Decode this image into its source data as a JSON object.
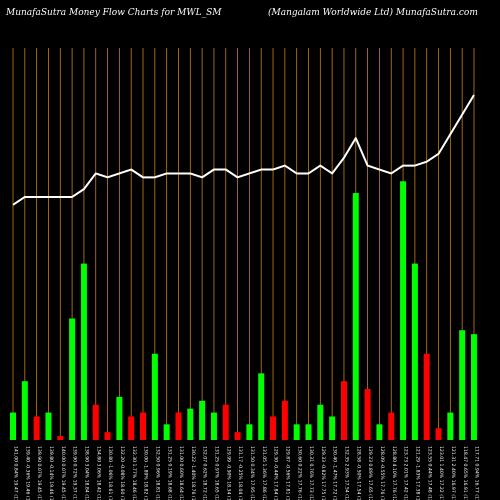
{
  "header": {
    "left": "MunafaSutra  Money Flow  Charts for  MWL_SM",
    "right": "(Mangalam Worldwide   Ltd) MunafaSutra.com"
  },
  "colors": {
    "background": "#000000",
    "gridline": "#c87f1a",
    "up": "#00ff00",
    "down": "#ff0000",
    "line": "#ffffff"
  },
  "chart_data": {
    "type": "bar",
    "title": "MunafaSutra  Money Flow  Charts for  MWL_SM",
    "subtitle": "(Mangalam Worldwide   Ltd) MunafaSutra.com",
    "xlabel": "",
    "ylabel": "",
    "ylim": [
      0,
      100
    ],
    "grid": "vertical",
    "categories": [
      "141.00 0.84% 19.47 (11.62%)",
      "139.40 -0.36% 19.46 (11.82%)",
      "139.90 0.07% 19.45 (11.54%)",
      "139.80 -0.14% 19.46 (11.47%)",
      "140.00 0.07% 19.45 (11.66%)",
      "139.90 0.72% 19.37 (11.52%)",
      "138.90 3.04% 18.84 (12.47%)",
      "134.80 3.06% 18.42 (12.46%)",
      "130.80 -1.06% 18.61 (12.45%)",
      "132.20 -0.08% 18.60 (12.20%)",
      "132.30 1.77% 18.46 (12.32%)",
      "130.00 -1.89% 18.82 (12.76%)",
      "132.50 0.96% 18.81 (12.59%)",
      "131.25 0.19% 18.68 (12.37%)",
      "131.00 0.60% 18.64 (12.28%)",
      "130.22 -1.40% 18.76 (12.51%)",
      "132.07 0.62% 18.72 (12.47%)",
      "131.25 0.97% 18.65 (12.55%)",
      "129.99 -0.90% 18.34 (12.63%)",
      "131.17 -0.25% 18.04 (12.71%)",
      "131.50 0.34% 17.95 (12.36%)",
      "131.05 1.36% 17.86 (12.16%)",
      "129.30 -0.44% 17.84 (12.43%)",
      "129.87 -0.56% 17.81 (12.08%)",
      "130.60 0.22% 17.76 (12.15%)",
      "130.31 0.76% 17.73 (12.40%)",
      "129.33 -0.82% 17.75 (12.51%)",
      "130.40 -1.47% 17.72 (12.77%)",
      "132.35 2.93% 17.54 (12.71%)",
      "128.58 -0.50% 17.54 (12.43%)",
      "129.23 0.89% 17.65 (12.16%)",
      "128.09 -0.55% 17.76 (12.50%)",
      "128.80 4.10% 17.76 (12.85%)",
      "123.73 2.01% 17.42 (12.28%)",
      "121.29 -1.83% 17.38 (12.09%)",
      "123.55 0.44% 17.48 (12.09%)",
      "123.01 1.40% 17.22 (11.53%)",
      "121.31 2.40% 16.97 (11.55%)",
      "118.47 0.65% 16.91 (11.92%)",
      "117.71 0.94% 16.77 (11.86%)"
    ],
    "series": [
      {
        "name": "",
        "values": [
          7,
          15,
          6,
          7,
          1,
          31,
          45,
          9,
          2,
          11,
          6,
          7,
          22,
          4,
          7,
          8,
          10,
          7,
          9,
          2,
          4,
          17,
          6,
          10,
          4,
          4,
          9,
          6,
          15,
          63,
          13,
          4,
          7,
          66,
          45,
          22,
          3,
          7,
          28,
          27
        ],
        "colors": [
          "green",
          "green",
          "red",
          "green",
          "red",
          "green",
          "green",
          "red",
          "red",
          "green",
          "red",
          "red",
          "green",
          "green",
          "red",
          "green",
          "green",
          "green",
          "red",
          "red",
          "green",
          "green",
          "red",
          "red",
          "green",
          "green",
          "green",
          "green",
          "red",
          "green",
          "red",
          "green",
          "red",
          "green",
          "green",
          "red",
          "red",
          "green",
          "green",
          "green"
        ]
      },
      {
        "name": "",
        "type": "line",
        "values": [
          60,
          62,
          62,
          62,
          62,
          62,
          64,
          68,
          67,
          68,
          69,
          67,
          67,
          68,
          68,
          68,
          67,
          69,
          69,
          67,
          68,
          69,
          69,
          70,
          68,
          68,
          70,
          68,
          72,
          77,
          70,
          69,
          68,
          70,
          70,
          71,
          73,
          78,
          83,
          88
        ]
      }
    ]
  }
}
